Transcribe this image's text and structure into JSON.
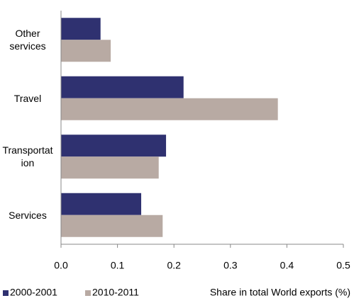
{
  "chart_data": {
    "type": "bar",
    "orientation": "horizontal",
    "categories": [
      "Other services",
      "Travel",
      "Transportation",
      "Services"
    ],
    "series": [
      {
        "name": "2000-2001",
        "color": "#2f3170",
        "values": [
          0.07,
          0.217,
          0.186,
          0.142
        ]
      },
      {
        "name": "2010-2011",
        "color": "#b8aaa3",
        "values": [
          0.088,
          0.384,
          0.173,
          0.18
        ]
      }
    ],
    "xlabel": "Share in total World exports (%)",
    "xlim": [
      0,
      0.5
    ],
    "xticks": [
      {
        "value": 0,
        "label": "0.0"
      },
      0.1,
      0.2,
      0.3,
      0.4,
      0.5
    ]
  }
}
